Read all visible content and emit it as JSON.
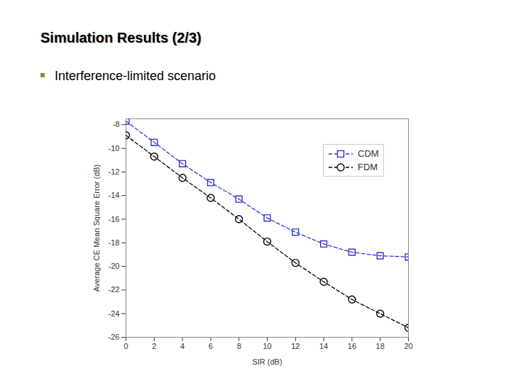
{
  "chart_data": {
    "type": "line",
    "title": "Simulation Results (2/3)",
    "subtitle": "Interference-limited scenario",
    "x_label": "SIR (dB)",
    "y_label": "Average CE Mean Square Error (dB)",
    "x": [
      0,
      2,
      4,
      6,
      8,
      10,
      12,
      14,
      16,
      18,
      20
    ],
    "series": [
      {
        "name": "CDM",
        "color": "#3333cc",
        "marker": "square",
        "line_style": "dashed",
        "values": [
          -7.7,
          -9.5,
          -11.3,
          -12.9,
          -14.3,
          -15.9,
          -17.1,
          -18.1,
          -18.8,
          -19.1,
          -19.2
        ]
      },
      {
        "name": "FDM",
        "color": "#000000",
        "marker": "circle",
        "line_style": "dashed",
        "values": [
          -8.9,
          -10.7,
          -12.5,
          -14.2,
          -16.0,
          -17.9,
          -19.7,
          -21.3,
          -22.8,
          -24.0,
          -25.2
        ]
      }
    ],
    "xlim": [
      0,
      20
    ],
    "xticks": [
      0,
      2,
      4,
      6,
      8,
      10,
      12,
      14,
      16,
      18,
      20
    ],
    "ylim": [
      -26,
      -7.5
    ],
    "yticks": [
      -26,
      -24,
      -22,
      -20,
      -18,
      -16,
      -14,
      -12,
      -10,
      -8
    ],
    "grid": false,
    "legend": "upper right"
  }
}
